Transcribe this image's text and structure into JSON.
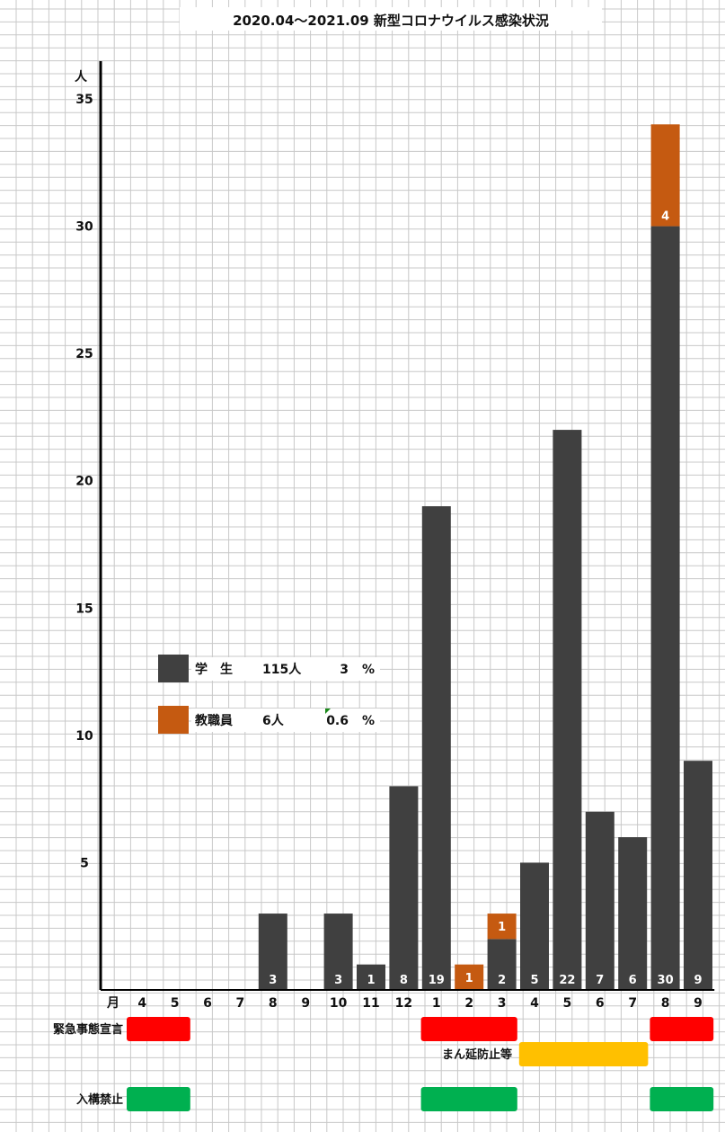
{
  "chart_data": {
    "type": "bar",
    "stacked": true,
    "title": "2020.04～2021.09 新型コロナウイルス感染状況",
    "ylabel": "人",
    "xlabel": "月",
    "ylim": [
      0,
      35
    ],
    "yticks": [
      5,
      10,
      15,
      20,
      25,
      30,
      35
    ],
    "grid": true,
    "categories": [
      "4",
      "5",
      "6",
      "7",
      "8",
      "9",
      "10",
      "11",
      "12",
      "1",
      "2",
      "3",
      "4",
      "5",
      "6",
      "7",
      "8",
      "9"
    ],
    "series": [
      {
        "name": "学　生",
        "color": "#404040",
        "values": [
          0,
          0,
          0,
          0,
          3,
          0,
          3,
          1,
          8,
          19,
          0,
          2,
          5,
          22,
          7,
          6,
          30,
          9
        ]
      },
      {
        "name": "教職員",
        "color": "#C55A11",
        "values": [
          0,
          0,
          0,
          0,
          0,
          0,
          0,
          0,
          0,
          0,
          1,
          1,
          0,
          0,
          0,
          0,
          4,
          0
        ]
      }
    ],
    "legend": [
      {
        "name": "学　生",
        "count": "115人",
        "pct": "3",
        "unit": "%"
      },
      {
        "name": "教職員",
        "count": "6人",
        "pct": "0.6",
        "unit": "%"
      }
    ],
    "legend_position": "center-left",
    "bands": [
      {
        "label": "緊急事態宣言",
        "color": "#FF0000",
        "ranges": [
          [
            0,
            1
          ],
          [
            9,
            11
          ],
          [
            16,
            17
          ]
        ]
      },
      {
        "label": "まん延防止等",
        "color": "#FFC000",
        "ranges": [
          [
            12,
            15
          ]
        ]
      },
      {
        "label": "入構禁止",
        "color": "#00B050",
        "ranges": [
          [
            0,
            1
          ],
          [
            9,
            11
          ],
          [
            16,
            17
          ]
        ]
      }
    ]
  }
}
